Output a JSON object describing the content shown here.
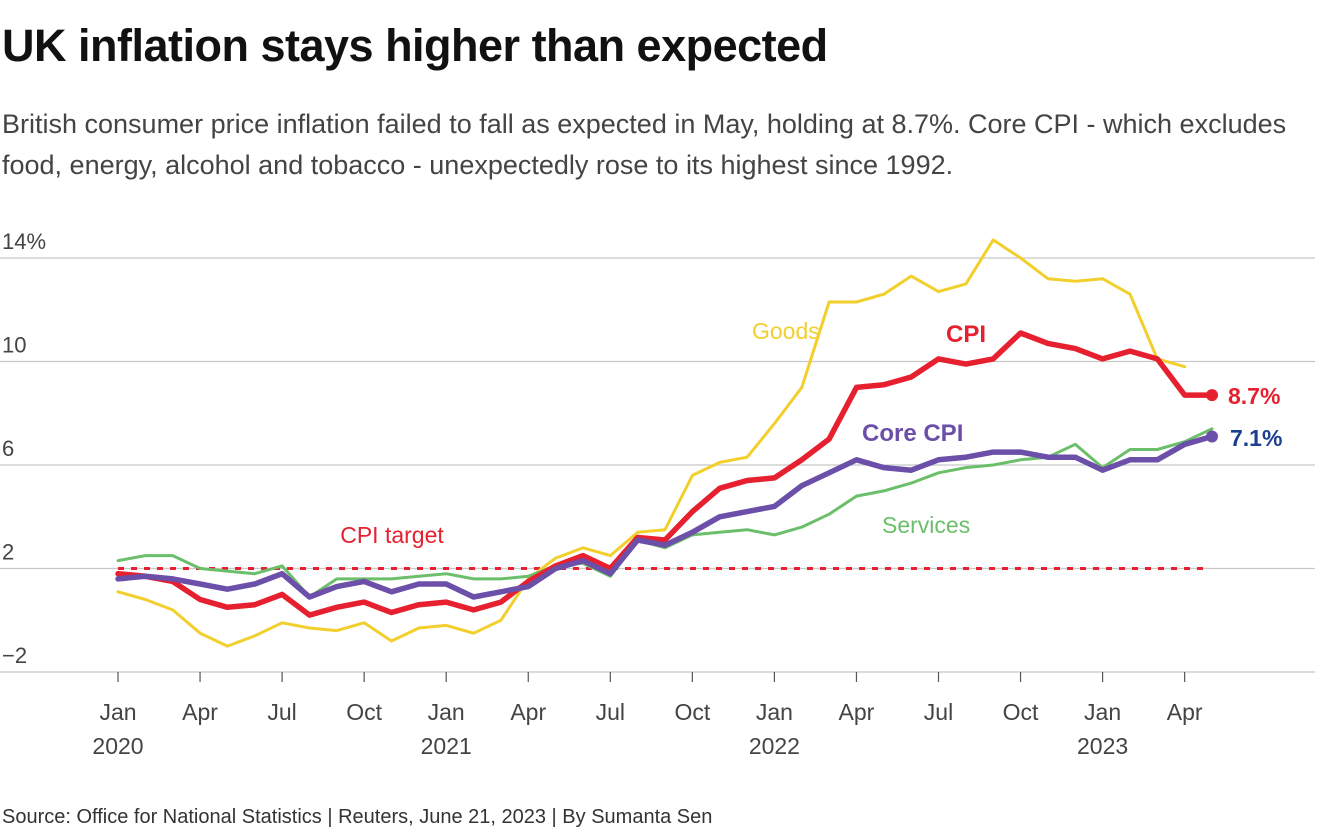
{
  "header": {
    "title": "UK inflation stays higher than expected",
    "subtitle": "British consumer price inflation failed to fall as expected in May, holding at 8.7%. Core CPI - which excludes food, energy, alcohol and tobacco - unexpectedly rose to its highest since 1992."
  },
  "footer": {
    "source": "Source: Office for National Statistics | Reuters, June 21, 2023 | By Sumanta Sen"
  },
  "colors": {
    "goods": "#f2cf2d",
    "cpi": "#e6202f",
    "core": "#6b4fa8",
    "services": "#6cbf6a",
    "core_value": "#1c3f8f",
    "target": "#e6202f"
  },
  "chart_data": {
    "type": "line",
    "title": "UK inflation stays higher than expected",
    "xlabel": "",
    "ylabel": "",
    "ylim": [
      -2,
      14
    ],
    "y_ticks": [
      14,
      10,
      6,
      2,
      -2
    ],
    "y_tick_labels": [
      "14%",
      "10",
      "6",
      "2",
      "−2"
    ],
    "x_tick_labels": [
      {
        "month": "Jan",
        "year": "2020",
        "index": 0
      },
      {
        "month": "Apr",
        "year": "",
        "index": 3
      },
      {
        "month": "Jul",
        "year": "",
        "index": 6
      },
      {
        "month": "Oct",
        "year": "",
        "index": 9
      },
      {
        "month": "Jan",
        "year": "2021",
        "index": 12
      },
      {
        "month": "Apr",
        "year": "",
        "index": 15
      },
      {
        "month": "Jul",
        "year": "",
        "index": 18
      },
      {
        "month": "Oct",
        "year": "",
        "index": 21
      },
      {
        "month": "Jan",
        "year": "2022",
        "index": 24
      },
      {
        "month": "Apr",
        "year": "",
        "index": 27
      },
      {
        "month": "Jul",
        "year": "",
        "index": 30
      },
      {
        "month": "Oct",
        "year": "",
        "index": 33
      },
      {
        "month": "Jan",
        "year": "2023",
        "index": 36
      },
      {
        "month": "Apr",
        "year": "",
        "index": 39
      }
    ],
    "x": [
      "2020-01",
      "2020-02",
      "2020-03",
      "2020-04",
      "2020-05",
      "2020-06",
      "2020-07",
      "2020-08",
      "2020-09",
      "2020-10",
      "2020-11",
      "2020-12",
      "2021-01",
      "2021-02",
      "2021-03",
      "2021-04",
      "2021-05",
      "2021-06",
      "2021-07",
      "2021-08",
      "2021-09",
      "2021-10",
      "2021-11",
      "2021-12",
      "2022-01",
      "2022-02",
      "2022-03",
      "2022-04",
      "2022-05",
      "2022-06",
      "2022-07",
      "2022-08",
      "2022-09",
      "2022-10",
      "2022-11",
      "2022-12",
      "2023-01",
      "2023-02",
      "2023-03",
      "2023-04",
      "2023-05"
    ],
    "series": [
      {
        "name": "Goods",
        "key": "goods",
        "label": "Goods",
        "values": [
          1.1,
          0.8,
          0.4,
          -0.5,
          -1.0,
          -0.6,
          -0.1,
          -0.3,
          -0.4,
          -0.1,
          -0.8,
          -0.3,
          -0.2,
          -0.5,
          0.0,
          1.6,
          2.4,
          2.8,
          2.5,
          3.4,
          3.5,
          5.6,
          6.1,
          6.3,
          7.6,
          9.0,
          12.3,
          12.3,
          12.6,
          13.3,
          12.7,
          13.0,
          14.7,
          14.0,
          13.2,
          13.1,
          13.2,
          12.6,
          10.1,
          9.8,
          null
        ]
      },
      {
        "name": "Services",
        "key": "services",
        "label": "Services",
        "values": [
          2.3,
          2.5,
          2.5,
          2.0,
          1.9,
          1.8,
          2.1,
          0.9,
          1.6,
          1.6,
          1.6,
          1.7,
          1.8,
          1.6,
          1.6,
          1.7,
          2.1,
          2.2,
          1.7,
          3.1,
          2.8,
          3.3,
          3.4,
          3.5,
          3.3,
          3.6,
          4.1,
          4.8,
          5.0,
          5.3,
          5.7,
          5.9,
          6.0,
          6.2,
          6.3,
          6.8,
          5.9,
          6.6,
          6.6,
          6.9,
          7.4
        ]
      },
      {
        "name": "CPI",
        "key": "cpi",
        "label": "CPI",
        "values": [
          1.8,
          1.7,
          1.5,
          0.8,
          0.5,
          0.6,
          1.0,
          0.2,
          0.5,
          0.7,
          0.3,
          0.6,
          0.7,
          0.4,
          0.7,
          1.5,
          2.1,
          2.5,
          2.0,
          3.2,
          3.1,
          4.2,
          5.1,
          5.4,
          5.5,
          6.2,
          7.0,
          9.0,
          9.1,
          9.4,
          10.1,
          9.9,
          10.1,
          11.1,
          10.7,
          10.5,
          10.1,
          10.4,
          10.1,
          8.7,
          8.7
        ]
      },
      {
        "name": "Core CPI",
        "key": "core",
        "label": "Core CPI",
        "values": [
          1.6,
          1.7,
          1.6,
          1.4,
          1.2,
          1.4,
          1.8,
          0.9,
          1.3,
          1.5,
          1.1,
          1.4,
          1.4,
          0.9,
          1.1,
          1.3,
          2.0,
          2.3,
          1.8,
          3.1,
          2.9,
          3.4,
          4.0,
          4.2,
          4.4,
          5.2,
          5.7,
          6.2,
          5.9,
          5.8,
          6.2,
          6.3,
          6.5,
          6.5,
          6.3,
          6.3,
          5.8,
          6.2,
          6.2,
          6.8,
          7.1
        ]
      }
    ],
    "target": {
      "label": "CPI target",
      "value": 2
    },
    "end_labels": {
      "cpi": "8.7%",
      "core": "7.1%"
    }
  }
}
